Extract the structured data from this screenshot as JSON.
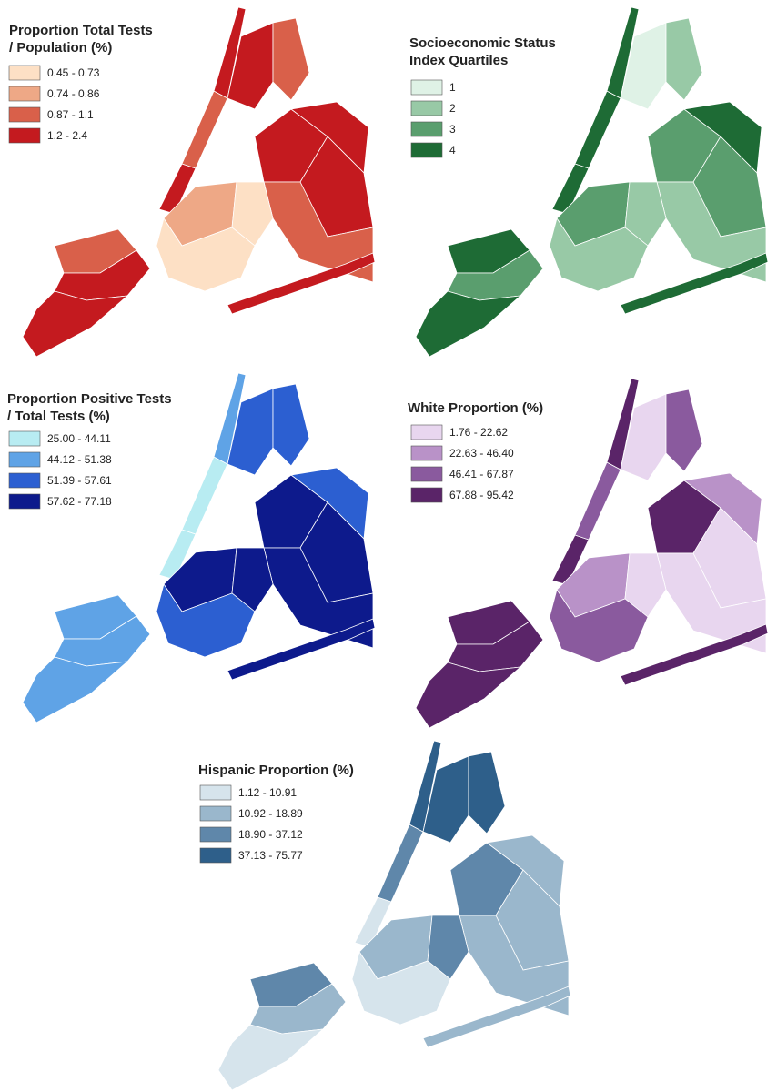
{
  "maps": [
    {
      "title_lines": [
        "Proportion Total Tests",
        " / Population (%)"
      ],
      "legend": [
        {
          "label": "0.45 - 0.73",
          "color": "#fde0c5"
        },
        {
          "label": "0.74 - 0.86",
          "color": "#eea886"
        },
        {
          "label": "0.87 - 1.1",
          "color": "#d9604a"
        },
        {
          "label": "1.2 - 2.4",
          "color": "#c41a1f"
        }
      ]
    },
    {
      "title_lines": [
        "Socioeconomic Status",
        "Index Quartiles"
      ],
      "legend": [
        {
          "label": "1",
          "color": "#dff2e6"
        },
        {
          "label": "2",
          "color": "#98c9a6"
        },
        {
          "label": "3",
          "color": "#5a9e6e"
        },
        {
          "label": "4",
          "color": "#1e6b35"
        }
      ]
    },
    {
      "title_lines": [
        "Proportion Positive Tests",
        "/ Total Tests (%)"
      ],
      "legend": [
        {
          "label": "25.00 - 44.11",
          "color": "#b8ecf2"
        },
        {
          "label": "44.12 - 51.38",
          "color": "#5fa3e6"
        },
        {
          "label": "51.39 - 57.61",
          "color": "#2c5fd1"
        },
        {
          "label": "57.62 - 77.18",
          "color": "#0d1a8c"
        }
      ]
    },
    {
      "title_lines": [
        "White Proportion (%)"
      ],
      "legend": [
        {
          "label": "1.76 - 22.62",
          "color": "#e8d6ef"
        },
        {
          "label": "22.63 - 46.40",
          "color": "#b992c8"
        },
        {
          "label": "46.41 - 67.87",
          "color": "#8a5a9e"
        },
        {
          "label": "67.88 - 95.42",
          "color": "#5a2468"
        }
      ]
    },
    {
      "title_lines": [
        "Hispanic Proportion (%)"
      ],
      "legend": [
        {
          "label": "1.12 - 10.91",
          "color": "#d6e4ec"
        },
        {
          "label": "10.92 - 18.89",
          "color": "#9ab7cc"
        },
        {
          "label": "18.90 - 37.12",
          "color": "#5f87aa"
        },
        {
          "label": "37.13 - 75.77",
          "color": "#2e5f8a"
        }
      ]
    }
  ]
}
